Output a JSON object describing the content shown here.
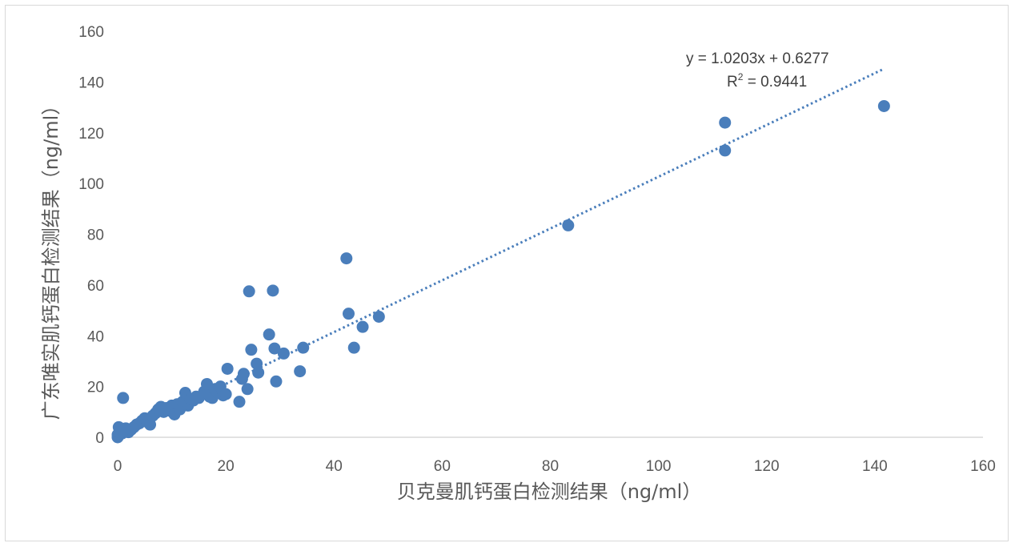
{
  "chart_data": {
    "type": "scatter",
    "xlabel": "贝克曼肌钙蛋白检测结果（ng/ml）",
    "ylabel": "广东唯实肌钙蛋白检测结果（ng/ml）",
    "xlim": [
      0,
      160
    ],
    "ylim": [
      0,
      160
    ],
    "xticks": [
      "0",
      "20",
      "40",
      "60",
      "80",
      "100",
      "120",
      "140",
      "160"
    ],
    "yticks": [
      "0",
      "20",
      "40",
      "60",
      "80",
      "100",
      "120",
      "140",
      "160"
    ],
    "grid": false,
    "marker_color": "#4a7ebb",
    "trendline": {
      "type": "linear",
      "slope": 1.0203,
      "intercept": 0.6277,
      "x_range": [
        0,
        141.5
      ],
      "equation": "y = 1.0203x + 0.6277",
      "r_squared_prefix": "R",
      "r_squared_sup": "2",
      "r_squared_value": " = 0.9441",
      "style": "dotted"
    },
    "points": [
      [
        0,
        0
      ],
      [
        0,
        1
      ],
      [
        0.3,
        2
      ],
      [
        0.5,
        3.5
      ],
      [
        0.2,
        4
      ],
      [
        0.8,
        1.5
      ],
      [
        1,
        2.5
      ],
      [
        1.5,
        3.5
      ],
      [
        2,
        2
      ],
      [
        2.5,
        3
      ],
      [
        3,
        4
      ],
      [
        3.5,
        5
      ],
      [
        4,
        5.5
      ],
      [
        4.5,
        6.5
      ],
      [
        5,
        7.5
      ],
      [
        5.5,
        6
      ],
      [
        6,
        5
      ],
      [
        6.5,
        8.5
      ],
      [
        7,
        9.5
      ],
      [
        7.5,
        11
      ],
      [
        8,
        12
      ],
      [
        8.5,
        10
      ],
      [
        9,
        11.5
      ],
      [
        9.5,
        10.5
      ],
      [
        10,
        12.5
      ],
      [
        10.5,
        9
      ],
      [
        11,
        13
      ],
      [
        11.5,
        11
      ],
      [
        12,
        14
      ],
      [
        12.5,
        17.5
      ],
      [
        13,
        12.5
      ],
      [
        13.5,
        15
      ],
      [
        14,
        14.5
      ],
      [
        14.5,
        16
      ],
      [
        15,
        15.5
      ],
      [
        16,
        18
      ],
      [
        16.5,
        21
      ],
      [
        17,
        16
      ],
      [
        17.5,
        15.5
      ],
      [
        18,
        19
      ],
      [
        18.5,
        17.5
      ],
      [
        19,
        20
      ],
      [
        19.5,
        16.5
      ],
      [
        20,
        17
      ],
      [
        20.3,
        27
      ],
      [
        22.5,
        14
      ],
      [
        23,
        23
      ],
      [
        23.3,
        25
      ],
      [
        24,
        19
      ],
      [
        24.3,
        57.5
      ],
      [
        24.7,
        34.5
      ],
      [
        25.7,
        29
      ],
      [
        26,
        25.5
      ],
      [
        28,
        40.5
      ],
      [
        28.7,
        57.8
      ],
      [
        29,
        35
      ],
      [
        29.3,
        22
      ],
      [
        30.7,
        33
      ],
      [
        33.7,
        26
      ],
      [
        34.3,
        35.3
      ],
      [
        42.3,
        70.5
      ],
      [
        42.7,
        48.7
      ],
      [
        43.7,
        35.3
      ],
      [
        45.3,
        43.5
      ],
      [
        48.3,
        47.5
      ],
      [
        83.3,
        83.5
      ],
      [
        112.3,
        124
      ],
      [
        112.3,
        113
      ],
      [
        141.7,
        130.5
      ],
      [
        1,
        15.5
      ]
    ]
  }
}
